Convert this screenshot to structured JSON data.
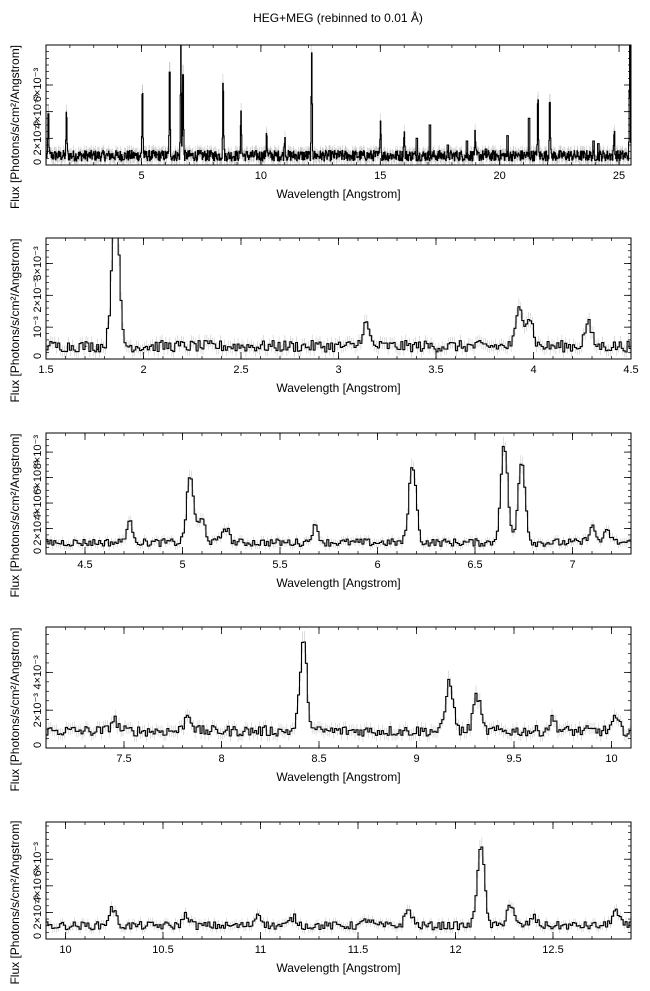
{
  "chart_data": {
    "title": "HEG+MEG (rebinned to 0.01 Å)",
    "panels": [
      {
        "type": "line",
        "xlabel": "Wavelength [Angstrom]",
        "ylabel": "Flux [Photons/s/cm²/Angstrom]",
        "xlim": [
          1.0,
          25.5
        ],
        "ylim": [
          0,
          0.009
        ],
        "xticks": [
          5,
          10,
          15,
          20,
          25
        ],
        "xtick_labels": [
          "5",
          "10",
          "15",
          "20",
          "25"
        ],
        "yticks": [
          0.002,
          0.004,
          0.006
        ],
        "ytick_labels": [
          "2×10⁻³",
          "4×10⁻³",
          "6×10⁻³"
        ],
        "baseline": 0.0007,
        "noise": 0.0004,
        "step": 0.02,
        "lines": [
          [
            1.86,
            0.0035
          ],
          [
            5.04,
            0.0055
          ],
          [
            6.18,
            0.007
          ],
          [
            6.65,
            0.0085
          ],
          [
            6.74,
            0.007
          ],
          [
            8.42,
            0.006
          ],
          [
            9.17,
            0.0035
          ],
          [
            10.24,
            0.002
          ],
          [
            11.0,
            0.0015
          ],
          [
            12.13,
            0.0075
          ],
          [
            15.01,
            0.003
          ],
          [
            16.0,
            0.002
          ],
          [
            18.97,
            0.0015
          ],
          [
            1.1,
            0.0035
          ],
          [
            21.6,
            0.0045
          ],
          [
            22.1,
            0.005
          ],
          [
            24.8,
            0.002
          ],
          [
            25.45,
            0.0085
          ]
        ],
        "spikes": [
          [
            16.5,
            0.002
          ],
          [
            17.05,
            0.003
          ],
          [
            17.8,
            0.0015
          ],
          [
            18.6,
            0.0018
          ],
          [
            19.4,
            0.0012
          ],
          [
            20.3,
            0.0022
          ],
          [
            21.2,
            0.0035
          ],
          [
            23.9,
            0.0018
          ],
          [
            24.1,
            0.0016
          ]
        ]
      },
      {
        "type": "line",
        "xlabel": "Wavelength [Angstrom]",
        "ylabel": "Flux [Photons/s/cm²/Angstrom]",
        "xlim": [
          1.5,
          4.5
        ],
        "ylim": [
          0,
          0.0038
        ],
        "xticks": [
          1.5,
          2,
          2.5,
          3,
          3.5,
          4,
          4.5
        ],
        "xtick_labels": [
          "1.5",
          "2",
          "2.5",
          "3",
          "3.5",
          "4",
          "4.5"
        ],
        "yticks": [
          0.001,
          0.002,
          0.003
        ],
        "ytick_labels": [
          "10⁻³",
          "2×10⁻³",
          "3×10⁻³"
        ],
        "baseline": 0.0004,
        "noise": 0.00018,
        "step": 0.01,
        "lines": [
          [
            1.86,
            0.0029
          ],
          [
            1.85,
            0.0018
          ],
          [
            3.14,
            0.0007
          ],
          [
            3.93,
            0.0012
          ],
          [
            3.98,
            0.0009
          ],
          [
            4.28,
            0.0007
          ]
        ],
        "spikes": [
          [
            1.7,
            0.0004
          ],
          [
            1.76,
            0.0003
          ]
        ]
      },
      {
        "type": "line",
        "xlabel": "Wavelength [Angstrom]",
        "ylabel": "Flux [Photons/s/cm²/Angstrom]",
        "xlim": [
          4.3,
          7.3
        ],
        "ylim": [
          0,
          0.0095
        ],
        "xticks": [
          4.5,
          5,
          5.5,
          6,
          6.5,
          7
        ],
        "xtick_labels": [
          "4.5",
          "5",
          "5.5",
          "6",
          "6.5",
          "7"
        ],
        "yticks": [
          0.002,
          0.004,
          0.006,
          0.008
        ],
        "ytick_labels": [
          "2×10⁻³",
          "4×10⁻³",
          "6×10⁻³",
          "8×10⁻³"
        ],
        "baseline": 0.0009,
        "noise": 0.0003,
        "step": 0.01,
        "lines": [
          [
            4.73,
            0.0015
          ],
          [
            5.04,
            0.0052
          ],
          [
            5.1,
            0.0018
          ],
          [
            5.22,
            0.0012
          ],
          [
            5.68,
            0.0012
          ],
          [
            6.18,
            0.0062
          ],
          [
            6.65,
            0.0076
          ],
          [
            6.74,
            0.0065
          ],
          [
            7.1,
            0.0012
          ],
          [
            7.18,
            0.0008
          ]
        ],
        "spikes": []
      },
      {
        "type": "line",
        "xlabel": "Wavelength [Angstrom]",
        "ylabel": "Flux [Photons/s/cm²/Angstrom]",
        "xlim": [
          7.1,
          10.1
        ],
        "ylim": [
          0,
          0.0064
        ],
        "xticks": [
          7.5,
          8,
          8.5,
          9,
          9.5,
          10
        ],
        "xtick_labels": [
          "7.5",
          "8",
          "8.5",
          "9",
          "9.5",
          "10"
        ],
        "yticks": [
          0.002,
          0.004
        ],
        "ytick_labels": [
          "2×10⁻³",
          "4×10⁻³"
        ],
        "baseline": 0.0009,
        "noise": 0.00028,
        "step": 0.01,
        "lines": [
          [
            7.45,
            0.0006
          ],
          [
            7.83,
            0.0009
          ],
          [
            8.42,
            0.0047
          ],
          [
            9.17,
            0.0027
          ],
          [
            9.31,
            0.0019
          ],
          [
            9.7,
            0.0006
          ],
          [
            10.02,
            0.0006
          ]
        ],
        "spikes": []
      },
      {
        "type": "line",
        "xlabel": "Wavelength [Angstrom]",
        "ylabel": "Flux [Photons/s/cm²/Angstrom]",
        "xlim": [
          9.9,
          12.9
        ],
        "ylim": [
          0,
          0.0088
        ],
        "xticks": [
          10,
          10.5,
          11,
          11.5,
          12,
          12.5
        ],
        "xtick_labels": [
          "10",
          "10.5",
          "11",
          "11.5",
          "12",
          "12.5"
        ],
        "yticks": [
          0.002,
          0.004,
          0.006
        ],
        "ytick_labels": [
          "2×10⁻³",
          "4×10⁻³",
          "6×10⁻³"
        ],
        "baseline": 0.001,
        "noise": 0.0003,
        "step": 0.01,
        "lines": [
          [
            10.24,
            0.0013
          ],
          [
            10.62,
            0.0008
          ],
          [
            10.99,
            0.0009
          ],
          [
            11.17,
            0.0006
          ],
          [
            11.55,
            0.0005
          ],
          [
            11.76,
            0.0012
          ],
          [
            12.13,
            0.0062
          ],
          [
            12.28,
            0.0016
          ],
          [
            12.4,
            0.0006
          ],
          [
            12.82,
            0.0011
          ]
        ],
        "spikes": []
      }
    ]
  }
}
